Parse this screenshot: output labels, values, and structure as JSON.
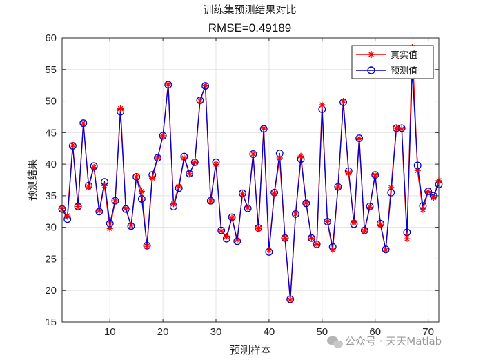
{
  "watermark": "公众号 · 天天Matlab",
  "colors": {
    "actual": "#ff0000",
    "predicted": "#0000cc",
    "grid": "#e3e3e3",
    "axis": "#262626"
  },
  "chart_data": {
    "type": "line",
    "title": "训练集预测结果对比",
    "subtitle": "RMSE=0.49189",
    "xlabel": "预测样本",
    "ylabel": "预测结果",
    "xlim": [
      1,
      72
    ],
    "ylim": [
      15,
      60
    ],
    "xticks": [
      10,
      20,
      30,
      40,
      50,
      60,
      70
    ],
    "yticks": [
      15,
      20,
      25,
      30,
      35,
      40,
      45,
      50,
      55,
      60
    ],
    "grid": true,
    "legend_position": "top-right",
    "x": [
      1,
      2,
      3,
      4,
      5,
      6,
      7,
      8,
      9,
      10,
      11,
      12,
      13,
      14,
      15,
      16,
      17,
      18,
      19,
      20,
      21,
      22,
      23,
      24,
      25,
      26,
      27,
      28,
      29,
      30,
      31,
      32,
      33,
      34,
      35,
      36,
      37,
      38,
      39,
      40,
      41,
      42,
      43,
      44,
      45,
      46,
      47,
      48,
      49,
      50,
      51,
      52,
      53,
      54,
      55,
      56,
      57,
      58,
      59,
      60,
      61,
      62,
      63,
      64,
      65,
      66,
      67,
      68,
      69,
      70,
      71,
      72
    ],
    "series": [
      {
        "name": "真实值",
        "marker": "asterisk",
        "color": "#ff0000",
        "values": [
          33.0,
          31.8,
          43.0,
          33.3,
          46.5,
          36.4,
          39.5,
          32.6,
          36.6,
          29.8,
          34.2,
          48.8,
          33.0,
          30.3,
          38.0,
          35.7,
          27.0,
          37.8,
          41.0,
          44.5,
          52.7,
          33.7,
          36.5,
          41.0,
          38.5,
          40.3,
          50.0,
          52.5,
          34.2,
          40.0,
          29.4,
          28.6,
          31.5,
          28.0,
          35.3,
          33.1,
          41.6,
          29.8,
          45.7,
          26.4,
          35.4,
          41.0,
          28.3,
          18.5,
          32.1,
          41.3,
          33.9,
          28.3,
          27.3,
          49.4,
          30.9,
          26.4,
          36.4,
          50.0,
          38.6,
          30.8,
          44.1,
          29.4,
          33.2,
          38.3,
          30.4,
          26.4,
          36.3,
          45.7,
          45.6,
          28.2,
          58.5,
          39.0,
          32.8,
          35.7,
          34.7,
          37.4
        ]
      },
      {
        "name": "预测值",
        "marker": "circle",
        "color": "#0000cc",
        "values": [
          32.9,
          31.3,
          42.9,
          33.3,
          46.5,
          36.6,
          39.7,
          32.5,
          37.2,
          30.6,
          34.2,
          48.3,
          32.9,
          30.2,
          38.0,
          34.5,
          27.1,
          38.3,
          41.0,
          44.5,
          52.6,
          33.3,
          36.2,
          41.2,
          38.5,
          40.3,
          50.1,
          52.4,
          34.2,
          40.3,
          29.5,
          28.2,
          31.6,
          27.8,
          35.4,
          33.0,
          41.6,
          29.9,
          45.6,
          26.1,
          35.5,
          41.7,
          28.3,
          18.6,
          32.1,
          40.8,
          33.8,
          28.3,
          27.3,
          48.7,
          30.9,
          26.9,
          36.4,
          49.8,
          38.9,
          30.5,
          44.1,
          29.5,
          33.3,
          38.3,
          30.6,
          26.5,
          35.5,
          45.7,
          45.7,
          29.2,
          54.8,
          39.8,
          33.4,
          35.7,
          35.0,
          36.8
        ]
      }
    ]
  }
}
